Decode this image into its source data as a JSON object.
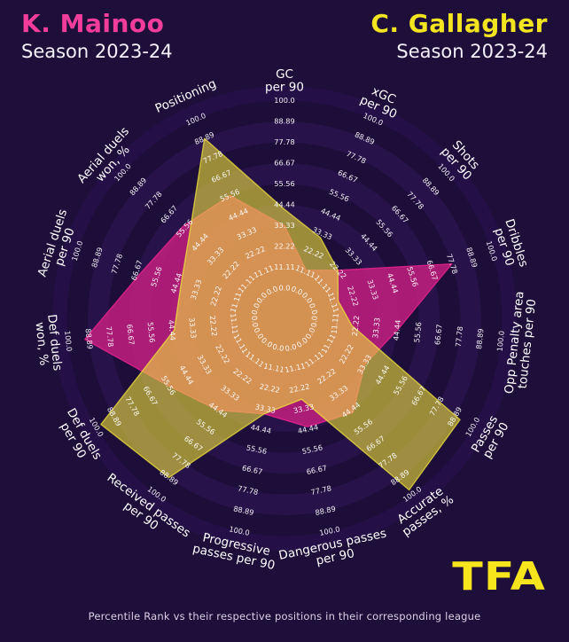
{
  "header": {
    "player_left": {
      "name": "K. Mainoo",
      "season": "Season 2023-24"
    },
    "player_right": {
      "name": "C. Gallagher",
      "season": "Season 2023-24"
    }
  },
  "colors": {
    "background": "#1d0e3a",
    "ring_band_dark": "#1c0d39",
    "ring_band_light": "#271349",
    "outer_disc": "#241047",
    "mainoo_pink": "#e0218a",
    "gallagher_yellow": "#f0e13c",
    "title_pink": "#f23d9b",
    "title_yellow": "#f2e41f",
    "tick_text": "#ffffff",
    "axis_text": "#ffffff",
    "logo_yellow": "#f6e41d"
  },
  "chart_data": {
    "type": "radar",
    "title": "K. Mainoo vs C. Gallagher — Season 2023-24 percentile radar",
    "scale": {
      "min": 0,
      "max": 100
    },
    "tick_labels": [
      "0.0",
      "11.11",
      "22.22",
      "33.33",
      "44.44",
      "55.56",
      "66.67",
      "77.78",
      "88.89",
      "100.0"
    ],
    "categories": [
      "GC per 90",
      "xGC per 90",
      "Shots per 90",
      "Dribbles per 90",
      "Opp Penalty area touches per 90",
      "Passes per 90",
      "Accurate passes, %",
      "Dangerous passes per 90",
      "Progressive passes per 90",
      "Received passes per 90",
      "Def duels per 90",
      "Def duels won, %",
      "Aerial duels per 90",
      "Aerial duels won, %",
      "Positioning"
    ],
    "category_label_lines": [
      [
        "GC",
        "per 90"
      ],
      [
        "xGC",
        "per 90"
      ],
      [
        "Shots",
        "per 90"
      ],
      [
        "Dribbles",
        "per 90"
      ],
      [
        "Opp Penalty area",
        "touches per 90"
      ],
      [
        "Passes",
        "per 90"
      ],
      [
        "Accurate",
        "passes, %"
      ],
      [
        "Dangerous passes",
        "per 90"
      ],
      [
        "Progressive",
        "passes per 90"
      ],
      [
        "Received passes",
        "per 90"
      ],
      [
        "Def duels",
        "per 90"
      ],
      [
        "Def duels",
        "won, %"
      ],
      [
        "Aerial duels",
        "per 90"
      ],
      [
        "Aerial duels",
        "won, %"
      ],
      [
        "Positioning"
      ]
    ],
    "series": [
      {
        "name": "K. Mainoo",
        "color": "#e0218a",
        "fill_opacity": 0.72,
        "values": [
          33.3,
          12,
          22.2,
          77.8,
          44.4,
          33.3,
          46,
          43,
          36,
          44.4,
          55.6,
          91,
          64,
          57,
          55.6
        ]
      },
      {
        "name": "C. Gallagher",
        "color": "#f0e13c",
        "fill_opacity": 0.6,
        "values": [
          42,
          31,
          22.2,
          14,
          20,
          92,
          97,
          28,
          36,
          88.9,
          97,
          43,
          42,
          52,
          88.9
        ]
      }
    ],
    "legend_position": "top-corners",
    "grid": "concentric-bands"
  },
  "footer": {
    "caption": "Percentile Rank vs their respective positions in their corresponding league"
  },
  "logo": {
    "text": "TFA"
  }
}
